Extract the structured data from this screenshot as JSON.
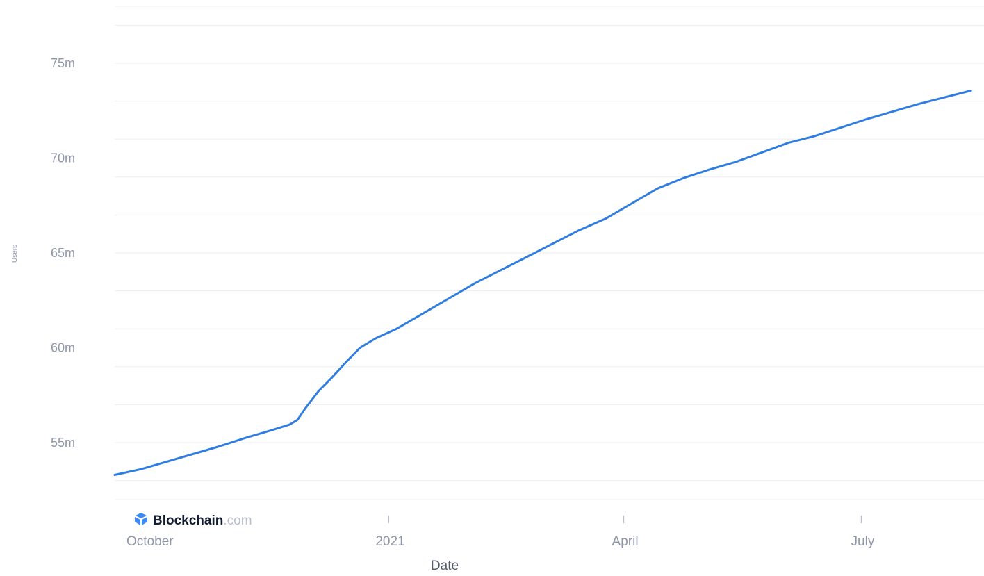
{
  "chart_data": {
    "type": "line",
    "title": "",
    "xlabel": "Date",
    "ylabel": "Users",
    "x_type": "date",
    "xlim": [
      "2020-09-18",
      "2021-08-17"
    ],
    "ylim": [
      52,
      78
    ],
    "y_unit_suffix": "m",
    "y_ticks": [
      {
        "value": 55,
        "label": "55m"
      },
      {
        "value": 60,
        "label": "60m"
      },
      {
        "value": 65,
        "label": "65m"
      },
      {
        "value": 70,
        "label": "70m"
      },
      {
        "value": 75,
        "label": "75m"
      }
    ],
    "y_gridlines": [
      53,
      55,
      57,
      59,
      61,
      63,
      65,
      67,
      69,
      71,
      73,
      75,
      77
    ],
    "x_ticks": [
      {
        "date": "2020-10-01",
        "label": "October",
        "mark": false
      },
      {
        "date": "2021-01-01",
        "label": "2021",
        "mark": true
      },
      {
        "date": "2021-04-01",
        "label": "April",
        "mark": true
      },
      {
        "date": "2021-07-01",
        "label": "July",
        "mark": true
      }
    ],
    "grid": true,
    "legend": "none",
    "series": [
      {
        "color": "#2f7de1",
        "points": [
          {
            "x": "2020-09-18",
            "y": 53.3
          },
          {
            "x": "2020-09-28",
            "y": 53.6
          },
          {
            "x": "2020-10-08",
            "y": 54.0
          },
          {
            "x": "2020-10-18",
            "y": 54.4
          },
          {
            "x": "2020-10-28",
            "y": 54.8
          },
          {
            "x": "2020-11-07",
            "y": 55.25
          },
          {
            "x": "2020-11-17",
            "y": 55.65
          },
          {
            "x": "2020-11-24",
            "y": 55.95
          },
          {
            "x": "2020-11-27",
            "y": 56.2
          },
          {
            "x": "2020-11-30",
            "y": 56.8
          },
          {
            "x": "2020-12-05",
            "y": 57.7
          },
          {
            "x": "2020-12-10",
            "y": 58.4
          },
          {
            "x": "2020-12-16",
            "y": 59.3
          },
          {
            "x": "2020-12-21",
            "y": 60.0
          },
          {
            "x": "2020-12-27",
            "y": 60.5
          },
          {
            "x": "2021-01-04",
            "y": 61.0
          },
          {
            "x": "2021-01-14",
            "y": 61.8
          },
          {
            "x": "2021-01-24",
            "y": 62.6
          },
          {
            "x": "2021-02-03",
            "y": 63.4
          },
          {
            "x": "2021-02-13",
            "y": 64.1
          },
          {
            "x": "2021-02-23",
            "y": 64.8
          },
          {
            "x": "2021-03-05",
            "y": 65.5
          },
          {
            "x": "2021-03-15",
            "y": 66.2
          },
          {
            "x": "2021-03-25",
            "y": 66.8
          },
          {
            "x": "2021-04-04",
            "y": 67.6
          },
          {
            "x": "2021-04-14",
            "y": 68.4
          },
          {
            "x": "2021-04-24",
            "y": 68.95
          },
          {
            "x": "2021-05-04",
            "y": 69.4
          },
          {
            "x": "2021-05-14",
            "y": 69.8
          },
          {
            "x": "2021-05-24",
            "y": 70.3
          },
          {
            "x": "2021-06-03",
            "y": 70.8
          },
          {
            "x": "2021-06-13",
            "y": 71.15
          },
          {
            "x": "2021-06-23",
            "y": 71.6
          },
          {
            "x": "2021-07-03",
            "y": 72.05
          },
          {
            "x": "2021-07-13",
            "y": 72.45
          },
          {
            "x": "2021-07-23",
            "y": 72.85
          },
          {
            "x": "2021-08-02",
            "y": 73.2
          },
          {
            "x": "2021-08-12",
            "y": 73.55
          }
        ]
      }
    ]
  },
  "branding": {
    "name": "Blockchain",
    "tld": ".com",
    "icon": "blockchain-logo-icon",
    "icon_color": "#3d89f5"
  }
}
